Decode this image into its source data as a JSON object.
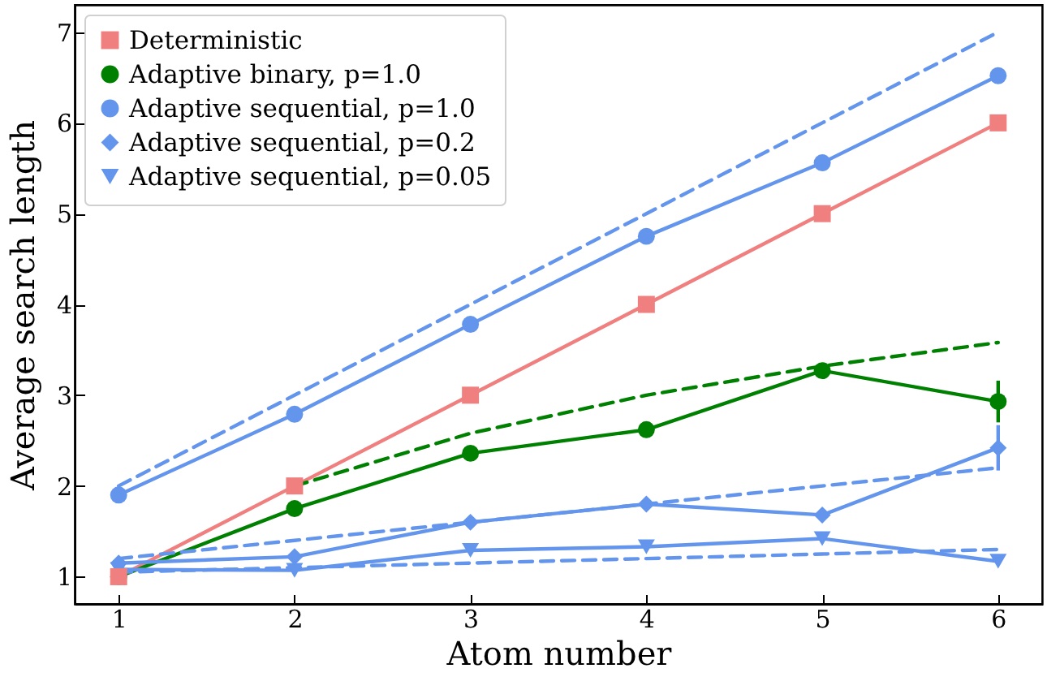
{
  "chart_data": {
    "type": "line",
    "xlabel": "Atom number",
    "ylabel": "Average search length",
    "x": [
      1,
      2,
      3,
      4,
      5,
      6
    ],
    "xlim": [
      0.75,
      6.25
    ],
    "xticks": [
      1,
      2,
      3,
      4,
      5,
      6
    ],
    "ylim": [
      0.7,
      7.3
    ],
    "yticks": [
      1,
      2,
      3,
      4,
      5,
      6,
      7
    ],
    "grid": false,
    "legend": "top left",
    "series": [
      {
        "name": "Deterministic",
        "color": "#f08080",
        "marker": "square",
        "line_style": "solid",
        "values": [
          1,
          2,
          3,
          4,
          5,
          6
        ]
      },
      {
        "name": "Adaptive binary, p=1.0",
        "color": "#008000",
        "marker": "circle",
        "line_style": "solid",
        "values": [
          1.0,
          1.75,
          2.36,
          2.62,
          3.27,
          2.93
        ],
        "errors": [
          null,
          null,
          null,
          null,
          null,
          0.23
        ]
      },
      {
        "name": "Adaptive sequential, p=1.0",
        "color": "#6495ed",
        "marker": "circle",
        "line_style": "solid",
        "values": [
          1.9,
          2.79,
          3.78,
          4.75,
          5.56,
          6.52
        ],
        "errors": [
          null,
          null,
          null,
          null,
          null,
          0.08
        ]
      },
      {
        "name": "Adaptive sequential, p=0.2",
        "color": "#6495ed",
        "marker": "diamond",
        "line_style": "solid",
        "values": [
          1.15,
          1.22,
          1.6,
          1.8,
          1.68,
          2.42
        ],
        "errors": [
          null,
          null,
          null,
          null,
          null,
          0.25
        ]
      },
      {
        "name": "Adaptive sequential, p=0.05",
        "color": "#6495ed",
        "marker": "triangle",
        "line_style": "solid",
        "values": [
          1.08,
          1.07,
          1.29,
          1.33,
          1.42,
          1.17
        ]
      },
      {
        "color": "#6495ed",
        "marker": "none",
        "line_style": "dashed",
        "values": [
          2,
          3,
          4,
          5,
          6,
          7
        ]
      },
      {
        "color": "#008000",
        "marker": "none",
        "line_style": "dashed",
        "x": [
          2,
          3,
          4,
          5,
          6
        ],
        "values": [
          2,
          2.58,
          3.0,
          3.32,
          3.58
        ]
      },
      {
        "color": "#6495ed",
        "marker": "none",
        "line_style": "dashed",
        "values": [
          1.2,
          1.4,
          1.6,
          1.8,
          2.0,
          2.2
        ]
      },
      {
        "color": "#6495ed",
        "marker": "none",
        "line_style": "dashed",
        "values": [
          1.05,
          1.1,
          1.15,
          1.2,
          1.25,
          1.3
        ]
      }
    ]
  }
}
